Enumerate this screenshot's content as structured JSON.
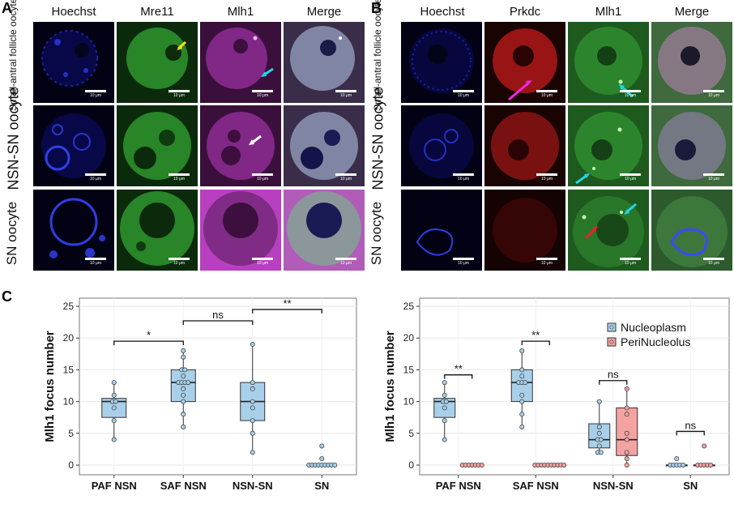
{
  "panels": {
    "A": {
      "letter": "A",
      "columns": [
        "Hoechst",
        "Mre11",
        "Mlh1",
        "Merge"
      ],
      "rows": [
        "Small-antral follicle oocyte",
        "NSN-SN oocyte",
        "SN oocyte"
      ],
      "scale_bar": "10 μm"
    },
    "B": {
      "letter": "B",
      "columns": [
        "Hoechst",
        "Prkdc",
        "Mlh1",
        "Merge"
      ],
      "rows": [
        "Small-antral follicle oocyte",
        "NSN-SN oocyte",
        "SN oocyte"
      ],
      "scale_bar": "10 μm"
    },
    "C": {
      "letter": "C"
    }
  },
  "colors": {
    "hoechst": "#1d2bd6",
    "green": "#2eb82e",
    "magenta": "#b02fb6",
    "red": "#c81e1e",
    "box_blue": "#a9d0ea",
    "box_red": "#f4a3a3"
  },
  "chart_data": [
    {
      "type": "box",
      "ylabel": "Mlh1 focus number",
      "ylim": [
        0,
        25
      ],
      "yticks": [
        0,
        5,
        10,
        15,
        20,
        25
      ],
      "categories": [
        "PAF NSN",
        "SAF NSN",
        "NSN-SN",
        "SN"
      ],
      "series": [
        {
          "name": "Nucleoplasm",
          "boxes": [
            {
              "min": 4,
              "q1": 7.5,
              "median": 10,
              "q3": 10.5,
              "max": 13
            },
            {
              "min": 6,
              "q1": 10,
              "median": 13,
              "q3": 15,
              "max": 18
            },
            {
              "min": 2,
              "q1": 7,
              "median": 10,
              "q3": 13,
              "max": 19
            },
            {
              "min": 0,
              "q1": 0,
              "median": 0,
              "q3": 0,
              "max": 0
            }
          ],
          "points": [
            [
              4,
              7,
              9,
              10,
              10,
              11,
              13
            ],
            [
              6,
              8,
              10,
              11,
              12,
              13,
              13,
              13,
              13,
              14,
              15,
              15,
              17,
              18
            ],
            [
              2,
              5,
              7,
              9,
              10,
              12,
              13,
              19
            ],
            [
              0,
              0,
              0,
              0,
              0,
              0,
              0,
              0,
              0,
              1,
              3
            ]
          ]
        }
      ],
      "significance": [
        {
          "from": 0,
          "to": 1,
          "label": "*",
          "y": 19.5
        },
        {
          "from": 1,
          "to": 2,
          "label": "ns",
          "y": 22.7
        },
        {
          "from": 2,
          "to": 3,
          "label": "**",
          "y": 24.5
        }
      ]
    },
    {
      "type": "box",
      "ylabel": "Mlh1 focus number",
      "ylim": [
        0,
        25
      ],
      "yticks": [
        0,
        5,
        10,
        15,
        20,
        25
      ],
      "categories": [
        "PAF NSN",
        "SAF NSN",
        "NSN-SN",
        "SN"
      ],
      "legend": [
        "Nucleoplasm",
        "PeriNucleolus"
      ],
      "series": [
        {
          "name": "Nucleoplasm",
          "boxes": [
            {
              "min": 4,
              "q1": 7.5,
              "median": 10,
              "q3": 10.5,
              "max": 13
            },
            {
              "min": 6,
              "q1": 10,
              "median": 13,
              "q3": 15,
              "max": 18
            },
            {
              "min": 2,
              "q1": 2.7,
              "median": 4,
              "q3": 6.5,
              "max": 10
            },
            {
              "min": 0,
              "q1": 0,
              "median": 0,
              "q3": 0,
              "max": 0
            }
          ],
          "points": [
            [
              4,
              7,
              9,
              10,
              10,
              11,
              13
            ],
            [
              6,
              8,
              10,
              11,
              13,
              13,
              13,
              14,
              15,
              18
            ],
            [
              2,
              2,
              3,
              4,
              4,
              5,
              6,
              10
            ],
            [
              0,
              0,
              0,
              0,
              0,
              1
            ]
          ]
        },
        {
          "name": "PeriNucleolus",
          "boxes": [
            {
              "min": 0,
              "q1": 0,
              "median": 0,
              "q3": 0,
              "max": 0
            },
            {
              "min": 0,
              "q1": 0,
              "median": 0,
              "q3": 0,
              "max": 0
            },
            {
              "min": 0,
              "q1": 1.5,
              "median": 4,
              "q3": 9,
              "max": 12
            },
            {
              "min": 0,
              "q1": 0,
              "median": 0,
              "q3": 0,
              "max": 0
            }
          ],
          "points": [
            [
              0,
              0,
              0,
              0,
              0,
              0,
              0
            ],
            [
              0,
              0,
              0,
              0,
              0,
              0,
              0,
              0,
              0,
              0
            ],
            [
              0,
              1,
              2,
              4,
              5,
              8,
              9,
              12
            ],
            [
              0,
              0,
              0,
              0,
              0,
              3
            ]
          ]
        }
      ],
      "significance": [
        {
          "group": 0,
          "label": "**",
          "y": 14.2
        },
        {
          "group": 1,
          "label": "**",
          "y": 19.5
        },
        {
          "group": 2,
          "label": "ns",
          "y": 13.3
        },
        {
          "group": 3,
          "label": "ns",
          "y": 5.3
        }
      ]
    }
  ]
}
